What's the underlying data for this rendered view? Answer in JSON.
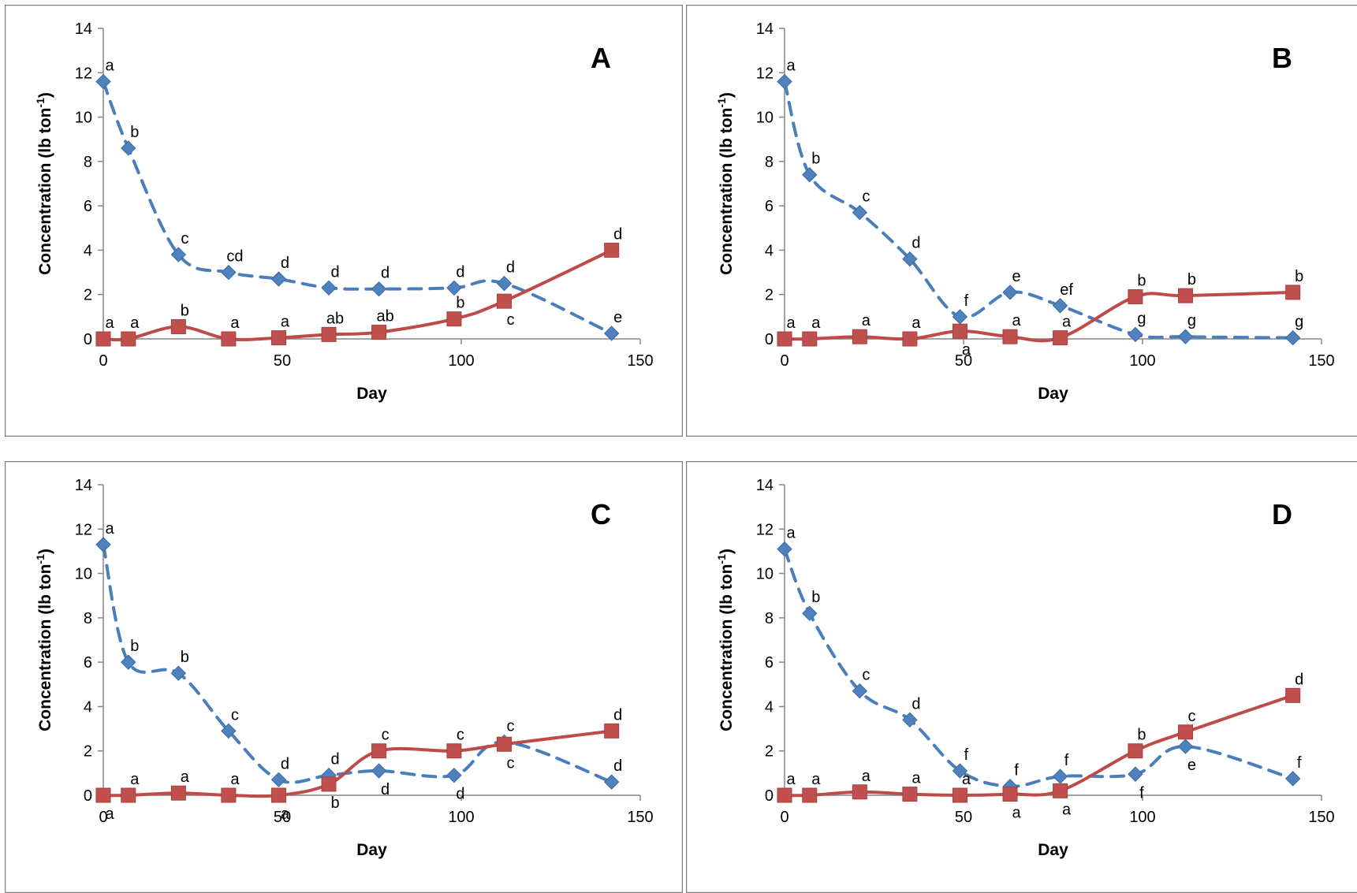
{
  "axes": {
    "xlabel": "Day",
    "ylabel_main": "Concentration (lb ton",
    "ylabel_sup": "-1",
    "ylabel_close": ")",
    "xlim": [
      0,
      150
    ],
    "ylim": [
      0,
      14
    ],
    "xticks": [
      0,
      50,
      100,
      150
    ],
    "yticks": [
      0,
      2,
      4,
      6,
      8,
      10,
      12,
      14
    ]
  },
  "colors": {
    "blue": "#4a7ebb",
    "blue_marker": "#4f81bd",
    "red": "#be4b48",
    "red_marker": "#c0504d",
    "frame": "#808080"
  },
  "chart_data": [
    {
      "type": "line",
      "panel": "A",
      "x": [
        0,
        7,
        21,
        35,
        49,
        63,
        77,
        98,
        112,
        142
      ],
      "series": [
        {
          "style": "dashed-diamond",
          "values": [
            11.6,
            8.6,
            3.8,
            3.0,
            2.7,
            2.3,
            2.25,
            2.3,
            2.5,
            0.25
          ],
          "labels": [
            "a",
            "b",
            "c",
            "cd",
            "d",
            "d",
            "d",
            "d",
            "d",
            "e"
          ],
          "label_pos": [
            "above",
            "above",
            "above",
            "above",
            "above",
            "above",
            "above",
            "above",
            "above",
            "above"
          ]
        },
        {
          "style": "solid-square",
          "values": [
            0,
            0,
            0.55,
            0,
            0.05,
            0.2,
            0.3,
            0.9,
            1.7,
            4.0
          ],
          "labels": [
            "a",
            "a",
            "b",
            "a",
            "a",
            "ab",
            "ab",
            "b",
            "c",
            "d"
          ],
          "label_pos": [
            "above",
            "above",
            "above",
            "above",
            "above",
            "above",
            "above",
            "above",
            "below",
            "above"
          ]
        }
      ]
    },
    {
      "type": "line",
      "panel": "B",
      "x": [
        0,
        7,
        21,
        35,
        49,
        63,
        77,
        98,
        112,
        142
      ],
      "series": [
        {
          "style": "dashed-diamond",
          "values": [
            11.6,
            7.4,
            5.7,
            3.6,
            1.0,
            2.1,
            1.5,
            0.2,
            0.1,
            0.05
          ],
          "labels": [
            "a",
            "b",
            "c",
            "d",
            "f",
            "e",
            "ef",
            "g",
            "g",
            "g"
          ],
          "label_pos": [
            "above",
            "above",
            "above",
            "above",
            "above",
            "above",
            "above",
            "above",
            "above",
            "above"
          ]
        },
        {
          "style": "solid-square",
          "values": [
            0,
            0,
            0.1,
            0,
            0.35,
            0.1,
            0.05,
            1.9,
            1.95,
            2.1
          ],
          "labels": [
            "a",
            "a",
            "a",
            "a",
            "a",
            "a",
            "a",
            "b",
            "b",
            "b"
          ],
          "label_pos": [
            "above",
            "above",
            "above",
            "above",
            "below",
            "above",
            "above",
            "above",
            "above",
            "above"
          ]
        }
      ]
    },
    {
      "type": "line",
      "panel": "C",
      "x": [
        0,
        7,
        21,
        35,
        49,
        63,
        77,
        98,
        112,
        142
      ],
      "series": [
        {
          "style": "dashed-diamond",
          "values": [
            11.3,
            6.0,
            5.5,
            2.9,
            0.7,
            0.9,
            1.1,
            0.9,
            2.4,
            0.6
          ],
          "labels": [
            "a",
            "b",
            "b",
            "c",
            "d",
            "d",
            "d",
            "d",
            "c",
            "d"
          ],
          "label_pos": [
            "above",
            "above",
            "above",
            "above",
            "above",
            "above",
            "below",
            "below",
            "above",
            "above"
          ]
        },
        {
          "style": "solid-square",
          "values": [
            0,
            0,
            0.1,
            0,
            0,
            0.5,
            2.0,
            2.0,
            2.3,
            2.9
          ],
          "labels": [
            "a",
            "a",
            "a",
            "a",
            "a",
            "b",
            "c",
            "c",
            "c",
            "d"
          ],
          "label_pos": [
            "below",
            "above",
            "above",
            "above",
            "below",
            "below",
            "above",
            "above",
            "below",
            "above"
          ]
        }
      ]
    },
    {
      "type": "line",
      "panel": "D",
      "x": [
        0,
        7,
        21,
        35,
        49,
        63,
        77,
        98,
        112,
        142
      ],
      "series": [
        {
          "style": "dashed-diamond",
          "values": [
            11.1,
            8.2,
            4.7,
            3.4,
            1.1,
            0.4,
            0.85,
            0.95,
            2.2,
            0.75
          ],
          "labels": [
            "a",
            "b",
            "c",
            "d",
            "f",
            "f",
            "f",
            "f",
            "e",
            "f"
          ],
          "label_pos": [
            "above",
            "above",
            "above",
            "above",
            "above",
            "above",
            "above",
            "below",
            "below",
            "above"
          ]
        },
        {
          "style": "solid-square",
          "values": [
            0,
            0,
            0.15,
            0.05,
            0,
            0.05,
            0.2,
            2.0,
            2.85,
            4.5
          ],
          "labels": [
            "a",
            "a",
            "a",
            "a",
            "a",
            "a",
            "a",
            "b",
            "c",
            "d"
          ],
          "label_pos": [
            "above",
            "above",
            "above",
            "above",
            "above",
            "below",
            "below",
            "above",
            "above",
            "above"
          ]
        }
      ]
    }
  ]
}
